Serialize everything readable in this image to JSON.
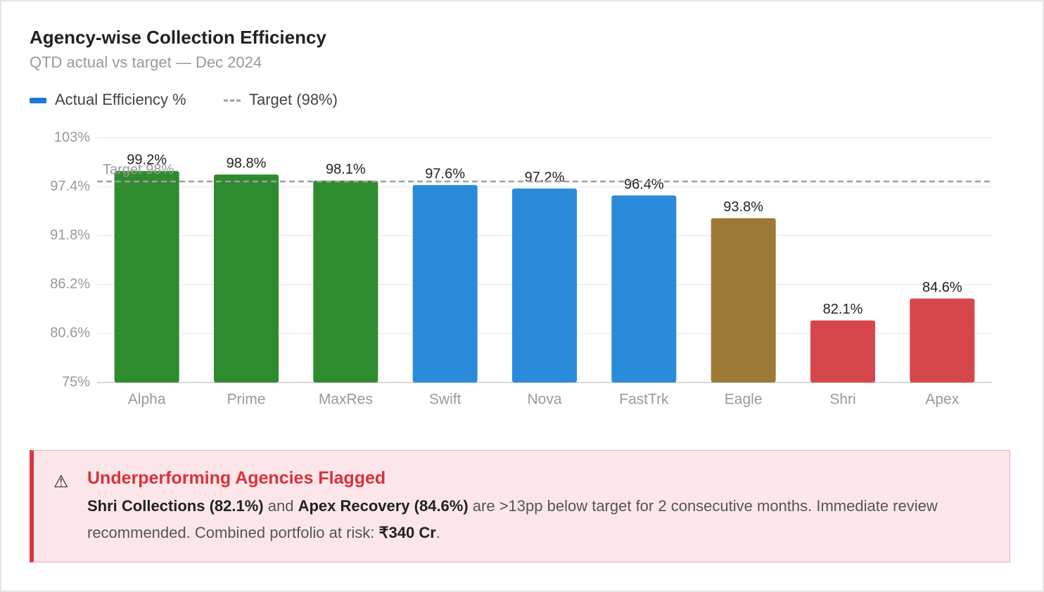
{
  "chart_data": {
    "type": "bar",
    "title": "Agency-wise Collection Efficiency",
    "subtitle": "QTD actual vs target — Dec 2024",
    "categories": [
      "Alpha",
      "Prime",
      "MaxRes",
      "Swift",
      "Nova",
      "FastTrk",
      "Eagle",
      "Shri",
      "Apex"
    ],
    "series": [
      {
        "name": "Actual Efficiency %",
        "color": "#1a7bd6",
        "values": [
          99.2,
          98.8,
          98.1,
          97.6,
          97.2,
          96.4,
          93.8,
          82.1,
          84.6
        ],
        "value_labels": [
          "99.2%",
          "98.8%",
          "98.1%",
          "97.6%",
          "97.2%",
          "96.4%",
          "93.8%",
          "82.1%",
          "84.6%"
        ],
        "colors": [
          "#2e8b2e",
          "#2e8b2e",
          "#2e8b2e",
          "#2a8bdb",
          "#2a8bdb",
          "#2a8bdb",
          "#9c7a35",
          "#d6474b",
          "#d6474b"
        ]
      }
    ],
    "target": {
      "name": "Target (98%)",
      "value": 98,
      "label": "Target 98%",
      "color": "#9e9e9e"
    },
    "ylim": [
      75,
      103
    ],
    "yticks": [
      {
        "value": 75,
        "label": "75%"
      },
      {
        "value": 80.6,
        "label": "80.6%"
      },
      {
        "value": 86.2,
        "label": "86.2%"
      },
      {
        "value": 91.8,
        "label": "91.8%"
      },
      {
        "value": 97.4,
        "label": "97.4%"
      },
      {
        "value": 103,
        "label": "103%"
      }
    ],
    "grid": true
  },
  "alert": {
    "icon": "⚠",
    "title": "Underperforming Agencies Flagged",
    "body": [
      {
        "text": "Shri Collections (82.1%)",
        "bold": true
      },
      {
        "text": " and "
      },
      {
        "text": "Apex Recovery (84.6%)",
        "bold": true
      },
      {
        "text": " are >13pp below target for 2 consecutive months. Immediate review recommended. Combined portfolio at risk: "
      },
      {
        "text": "₹340 Cr",
        "bold": true
      },
      {
        "text": "."
      }
    ]
  }
}
